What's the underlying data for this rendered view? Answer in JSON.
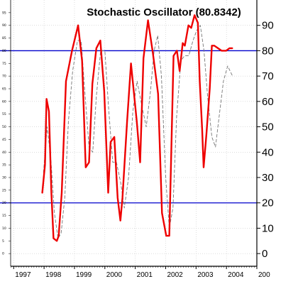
{
  "chart_data": {
    "type": "line",
    "title": "Stochastic Oscillator (80.8342)",
    "xlabel": "",
    "ylabel": "",
    "ylim": [
      -5,
      100
    ],
    "xlim": [
      1996.9,
      2005.0
    ],
    "grid": true,
    "y_ticks": [
      0,
      10,
      20,
      30,
      40,
      50,
      60,
      70,
      80,
      90
    ],
    "y_ticks_small": [
      0,
      5,
      10,
      15,
      20,
      25,
      30,
      35,
      40,
      45,
      50,
      55,
      60,
      65,
      70,
      75,
      80,
      85,
      90,
      95
    ],
    "x_ticks": [
      "1997",
      "1998",
      "1999",
      "2000",
      "2001",
      "2002",
      "2003",
      "2004",
      "200"
    ],
    "reference_lines": [
      {
        "value": 80,
        "color": "#0000cc"
      },
      {
        "value": 20,
        "color": "#0000cc"
      }
    ],
    "series": [
      {
        "style": "solid",
        "color": "#ee0000",
        "x": [
          1997.94,
          1998.03,
          1998.08,
          1998.16,
          1998.24,
          1998.31,
          1998.42,
          1998.48,
          1998.58,
          1998.72,
          1998.92,
          1999.12,
          1999.25,
          1999.37,
          1999.48,
          1999.59,
          1999.72,
          1999.85,
          1999.98,
          2000.11,
          2000.19,
          2000.31,
          2000.42,
          2000.51,
          2000.58,
          2000.73,
          2000.86,
          2001.05,
          2001.16,
          2001.27,
          2001.42,
          2001.58,
          2001.75,
          2001.88,
          2002.02,
          2002.12,
          2002.26,
          2002.37,
          2002.46,
          2002.56,
          2002.63,
          2002.75,
          2002.84,
          2002.95,
          2003.06,
          2003.12,
          2003.2,
          2003.25,
          2003.34,
          2003.45,
          2003.52,
          2003.6,
          2003.72,
          2003.84,
          2003.99,
          2004.1,
          2004.19
        ],
        "y": [
          24,
          35,
          61,
          56,
          24,
          6,
          5,
          7,
          24,
          68,
          80,
          90,
          76,
          34,
          36,
          67,
          81,
          84,
          64,
          24,
          44,
          46,
          22,
          13,
          22,
          52,
          75,
          52,
          36,
          77,
          92,
          79,
          63,
          16,
          7,
          7,
          78,
          80,
          72,
          83,
          82,
          90,
          89,
          94,
          91,
          68,
          49,
          34,
          47,
          65,
          82,
          82,
          81,
          80,
          80,
          81,
          81
        ]
      },
      {
        "style": "dashed",
        "color": "#777777",
        "x": [
          1997.98,
          1998.1,
          1998.22,
          1998.34,
          1998.46,
          1998.56,
          1998.68,
          1998.8,
          1998.94,
          1999.1,
          1999.22,
          1999.34,
          1999.48,
          1999.6,
          1999.72,
          1999.86,
          2000.0,
          2000.12,
          2000.26,
          2000.38,
          2000.52,
          2000.64,
          2000.78,
          2000.92,
          2001.06,
          2001.22,
          2001.36,
          2001.5,
          2001.62,
          2001.74,
          2001.86,
          2002.0,
          2002.12,
          2002.24,
          2002.36,
          2002.5,
          2002.62,
          2002.76,
          2002.9,
          2003.02,
          2003.14,
          2003.26,
          2003.38,
          2003.52,
          2003.64,
          2003.78,
          2003.9,
          2004.04,
          2004.2
        ],
        "y": [
          32,
          50,
          38,
          16,
          6,
          8,
          22,
          52,
          72,
          84,
          84,
          64,
          42,
          40,
          62,
          80,
          80,
          58,
          36,
          36,
          28,
          18,
          30,
          56,
          68,
          58,
          50,
          64,
          80,
          86,
          70,
          30,
          10,
          18,
          54,
          76,
          78,
          78,
          84,
          88,
          90,
          80,
          62,
          46,
          42,
          56,
          68,
          74,
          70
        ]
      }
    ]
  }
}
